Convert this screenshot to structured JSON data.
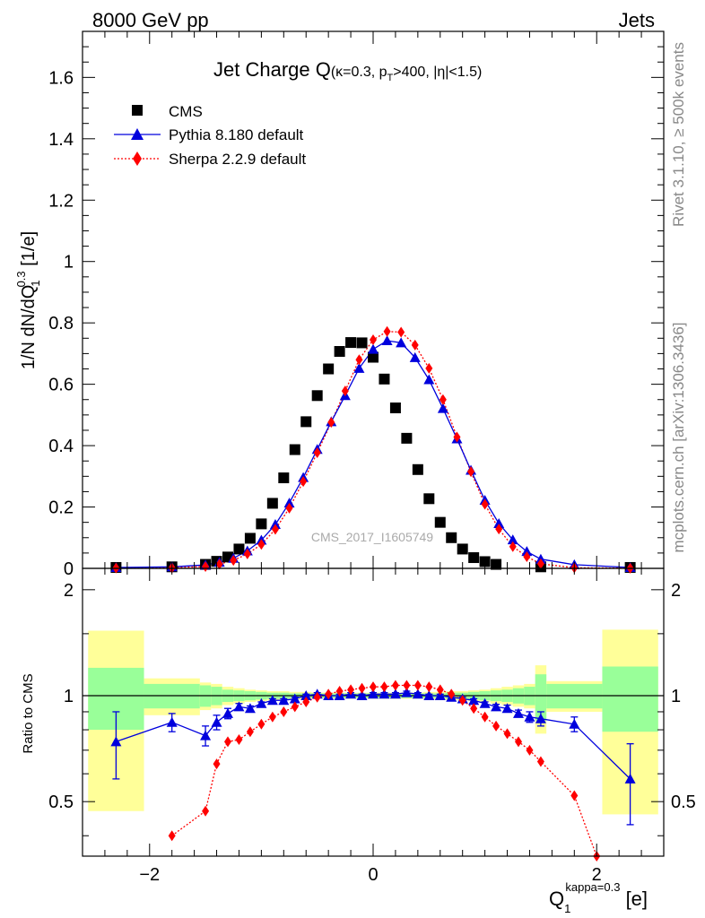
{
  "header": {
    "energy": "8000 GeV pp",
    "category": "Jets",
    "side_top": "Rivet 3.1.10, ≥ 500k events",
    "side_bottom": "mcplots.cern.ch [arXiv:1306.3436]"
  },
  "chart_data": {
    "type": "scatter",
    "title_main": "Jet Charge Q",
    "title_sub": "(κ=0.3, p",
    "title_sub_index": "T",
    "title_sub_tail": ">400, |η|<1.5)",
    "ylabel": "1/N dN/dQ",
    "ylabel_index": "1",
    "ylabel_power": "0.3",
    "ylabel_unit": " [1/e]",
    "ratio_ylabel": "Ratio to CMS",
    "xlabel": "Q",
    "xlabel_index": "1",
    "xlabel_power": "kappa=0.3",
    "xlabel_unit": " [e]",
    "watermark": "CMS_2017_I1605749",
    "xlim": [
      -2.6,
      2.6
    ],
    "ylim": [
      0,
      1.75
    ],
    "ratio_ylim": [
      0.35,
      2.3
    ],
    "x_ticks": [
      -2,
      0,
      2
    ],
    "y_ticks": [
      0,
      0.2,
      0.4,
      0.6,
      0.8,
      1,
      1.2,
      1.4,
      1.6
    ],
    "ratio_ticks": [
      0.5,
      1,
      2
    ],
    "legend": [
      "CMS",
      "Pythia 8.180 default",
      "Sherpa 2.2.9 default"
    ],
    "colors": {
      "cms": "#000000",
      "pythia": "#0000dd",
      "sherpa": "#ff0000",
      "band_inner": "#99ff99",
      "band_outer": "#ffff99"
    },
    "x": [
      -2.3,
      -1.8,
      -1.5,
      -1.4,
      -1.3,
      -1.2,
      -1.1,
      -1.0,
      -0.9,
      -0.8,
      -0.7,
      -0.6,
      -0.5,
      -0.4,
      -0.3,
      -0.2,
      -0.1,
      0.0,
      0.1,
      0.2,
      0.3,
      0.4,
      0.5,
      0.6,
      0.7,
      0.8,
      0.9,
      1.0,
      1.1,
      1.2,
      1.3,
      1.4,
      1.5,
      1.8,
      2.3
    ],
    "cms": [
      0.003,
      0.005,
      0.013,
      0.023,
      0.037,
      0.063,
      0.098,
      0.145,
      0.212,
      0.295,
      0.387,
      0.478,
      0.563,
      0.65,
      0.707,
      0.736,
      0.735,
      0.688,
      0.617,
      0.523,
      0.424,
      0.322,
      0.227,
      0.15,
      0.1,
      0.063,
      0.035,
      0.022,
      0.013,
      0.005,
      0.003
    ],
    "cms_x": [
      -2.3,
      -1.8,
      -1.5,
      -1.4,
      -1.3,
      -1.2,
      -1.1,
      -1.0,
      -0.9,
      -0.8,
      -0.7,
      -0.6,
      -0.5,
      -0.4,
      -0.3,
      -0.2,
      -0.1,
      0.0,
      0.1,
      0.2,
      0.3,
      0.4,
      0.5,
      0.6,
      0.7,
      0.8,
      0.9,
      1.0,
      1.1,
      1.5,
      2.3
    ],
    "pythia_x": [
      -2.3,
      -1.8,
      -1.5,
      -1.375,
      -1.25,
      -1.125,
      -1.0,
      -0.875,
      -0.75,
      -0.625,
      -0.5,
      -0.375,
      -0.25,
      -0.125,
      0.0,
      0.125,
      0.25,
      0.375,
      0.5,
      0.625,
      0.75,
      0.875,
      1.0,
      1.125,
      1.25,
      1.375,
      1.5,
      1.8,
      2.3
    ],
    "pythia": [
      0.003,
      0.005,
      0.011,
      0.02,
      0.033,
      0.057,
      0.092,
      0.143,
      0.213,
      0.296,
      0.388,
      0.478,
      0.563,
      0.652,
      0.714,
      0.742,
      0.735,
      0.687,
      0.615,
      0.521,
      0.422,
      0.32,
      0.222,
      0.146,
      0.093,
      0.055,
      0.03,
      0.012,
      0.003
    ],
    "sherpa_x": [
      -2.3,
      -1.8,
      -1.5,
      -1.375,
      -1.25,
      -1.125,
      -1.0,
      -0.875,
      -0.75,
      -0.625,
      -0.5,
      -0.375,
      -0.25,
      -0.125,
      0.0,
      0.125,
      0.25,
      0.375,
      0.5,
      0.625,
      0.75,
      0.875,
      1.0,
      1.125,
      1.25,
      1.375,
      1.5,
      1.8,
      2.3
    ],
    "sherpa": [
      0.001,
      0.002,
      0.006,
      0.014,
      0.026,
      0.047,
      0.078,
      0.127,
      0.196,
      0.283,
      0.377,
      0.476,
      0.578,
      0.68,
      0.745,
      0.772,
      0.77,
      0.728,
      0.652,
      0.55,
      0.428,
      0.315,
      0.209,
      0.128,
      0.071,
      0.038,
      0.015,
      0.002,
      0.0005
    ],
    "ratio_pythia_x": [
      -2.3,
      -1.8,
      -1.5,
      -1.4,
      -1.3,
      -1.2,
      -1.1,
      -1.0,
      -0.9,
      -0.8,
      -0.7,
      -0.6,
      -0.5,
      -0.4,
      -0.3,
      -0.2,
      -0.1,
      0.0,
      0.1,
      0.2,
      0.3,
      0.4,
      0.5,
      0.6,
      0.7,
      0.8,
      0.9,
      1.0,
      1.1,
      1.2,
      1.3,
      1.4,
      1.5,
      1.8,
      2.3
    ],
    "ratio_pythia": [
      0.74,
      0.84,
      0.77,
      0.84,
      0.89,
      0.93,
      0.92,
      0.95,
      0.97,
      0.97,
      0.98,
      1.0,
      1.01,
      1.0,
      1.0,
      1.01,
      1.0,
      1.01,
      1.01,
      1.01,
      1.02,
      1.01,
      1.0,
      1.0,
      0.99,
      0.98,
      0.97,
      0.95,
      0.93,
      0.92,
      0.89,
      0.87,
      0.86,
      0.83,
      0.58
    ],
    "ratio_pythia_err": [
      0.16,
      0.05,
      0.05,
      0.04,
      0.03,
      0.02,
      0.015,
      0.01,
      0.01,
      0.01,
      0.01,
      0.01,
      0.01,
      0.01,
      0.01,
      0.01,
      0.01,
      0.01,
      0.01,
      0.01,
      0.01,
      0.01,
      0.01,
      0.01,
      0.01,
      0.01,
      0.01,
      0.01,
      0.015,
      0.02,
      0.02,
      0.03,
      0.04,
      0.04,
      0.15
    ],
    "ratio_sherpa_x": [
      -1.8,
      -1.5,
      -1.4,
      -1.3,
      -1.2,
      -1.1,
      -1.0,
      -0.9,
      -0.8,
      -0.7,
      -0.6,
      -0.5,
      -0.4,
      -0.3,
      -0.2,
      -0.1,
      0.0,
      0.1,
      0.2,
      0.3,
      0.4,
      0.5,
      0.6,
      0.7,
      0.8,
      0.9,
      1.0,
      1.1,
      1.2,
      1.3,
      1.4,
      1.5,
      1.8,
      2.0
    ],
    "ratio_sherpa": [
      0.4,
      0.47,
      0.64,
      0.74,
      0.75,
      0.79,
      0.83,
      0.87,
      0.9,
      0.93,
      0.96,
      0.99,
      1.01,
      1.03,
      1.04,
      1.05,
      1.06,
      1.06,
      1.07,
      1.07,
      1.07,
      1.06,
      1.04,
      1.01,
      0.97,
      0.92,
      0.87,
      0.82,
      0.78,
      0.74,
      0.7,
      0.65,
      0.52,
      0.35
    ],
    "band_edges": [
      -2.55,
      -2.05,
      -1.55,
      -1.45,
      -1.35,
      -1.25,
      -1.15,
      -1.05,
      -0.95,
      -0.85,
      -0.75,
      -0.65,
      -0.55,
      -0.45,
      -0.35,
      -0.25,
      -0.15,
      -0.05,
      0.05,
      0.15,
      0.25,
      0.35,
      0.45,
      0.55,
      0.65,
      0.75,
      0.85,
      0.95,
      1.05,
      1.15,
      1.25,
      1.35,
      1.45,
      1.55,
      2.05,
      2.55
    ],
    "band_inner": [
      0.2,
      0.08,
      0.07,
      0.06,
      0.04,
      0.035,
      0.03,
      0.025,
      0.02,
      0.02,
      0.015,
      0.015,
      0.015,
      0.015,
      0.015,
      0.015,
      0.015,
      0.015,
      0.015,
      0.015,
      0.015,
      0.015,
      0.015,
      0.015,
      0.02,
      0.02,
      0.025,
      0.03,
      0.035,
      0.04,
      0.05,
      0.06,
      0.15,
      0.08,
      0.21
    ],
    "band_outer": [
      0.53,
      0.12,
      0.09,
      0.08,
      0.06,
      0.05,
      0.04,
      0.035,
      0.03,
      0.03,
      0.025,
      0.025,
      0.02,
      0.02,
      0.02,
      0.02,
      0.02,
      0.02,
      0.02,
      0.02,
      0.02,
      0.02,
      0.025,
      0.025,
      0.03,
      0.03,
      0.035,
      0.04,
      0.05,
      0.06,
      0.07,
      0.08,
      0.22,
      0.1,
      0.54
    ]
  }
}
